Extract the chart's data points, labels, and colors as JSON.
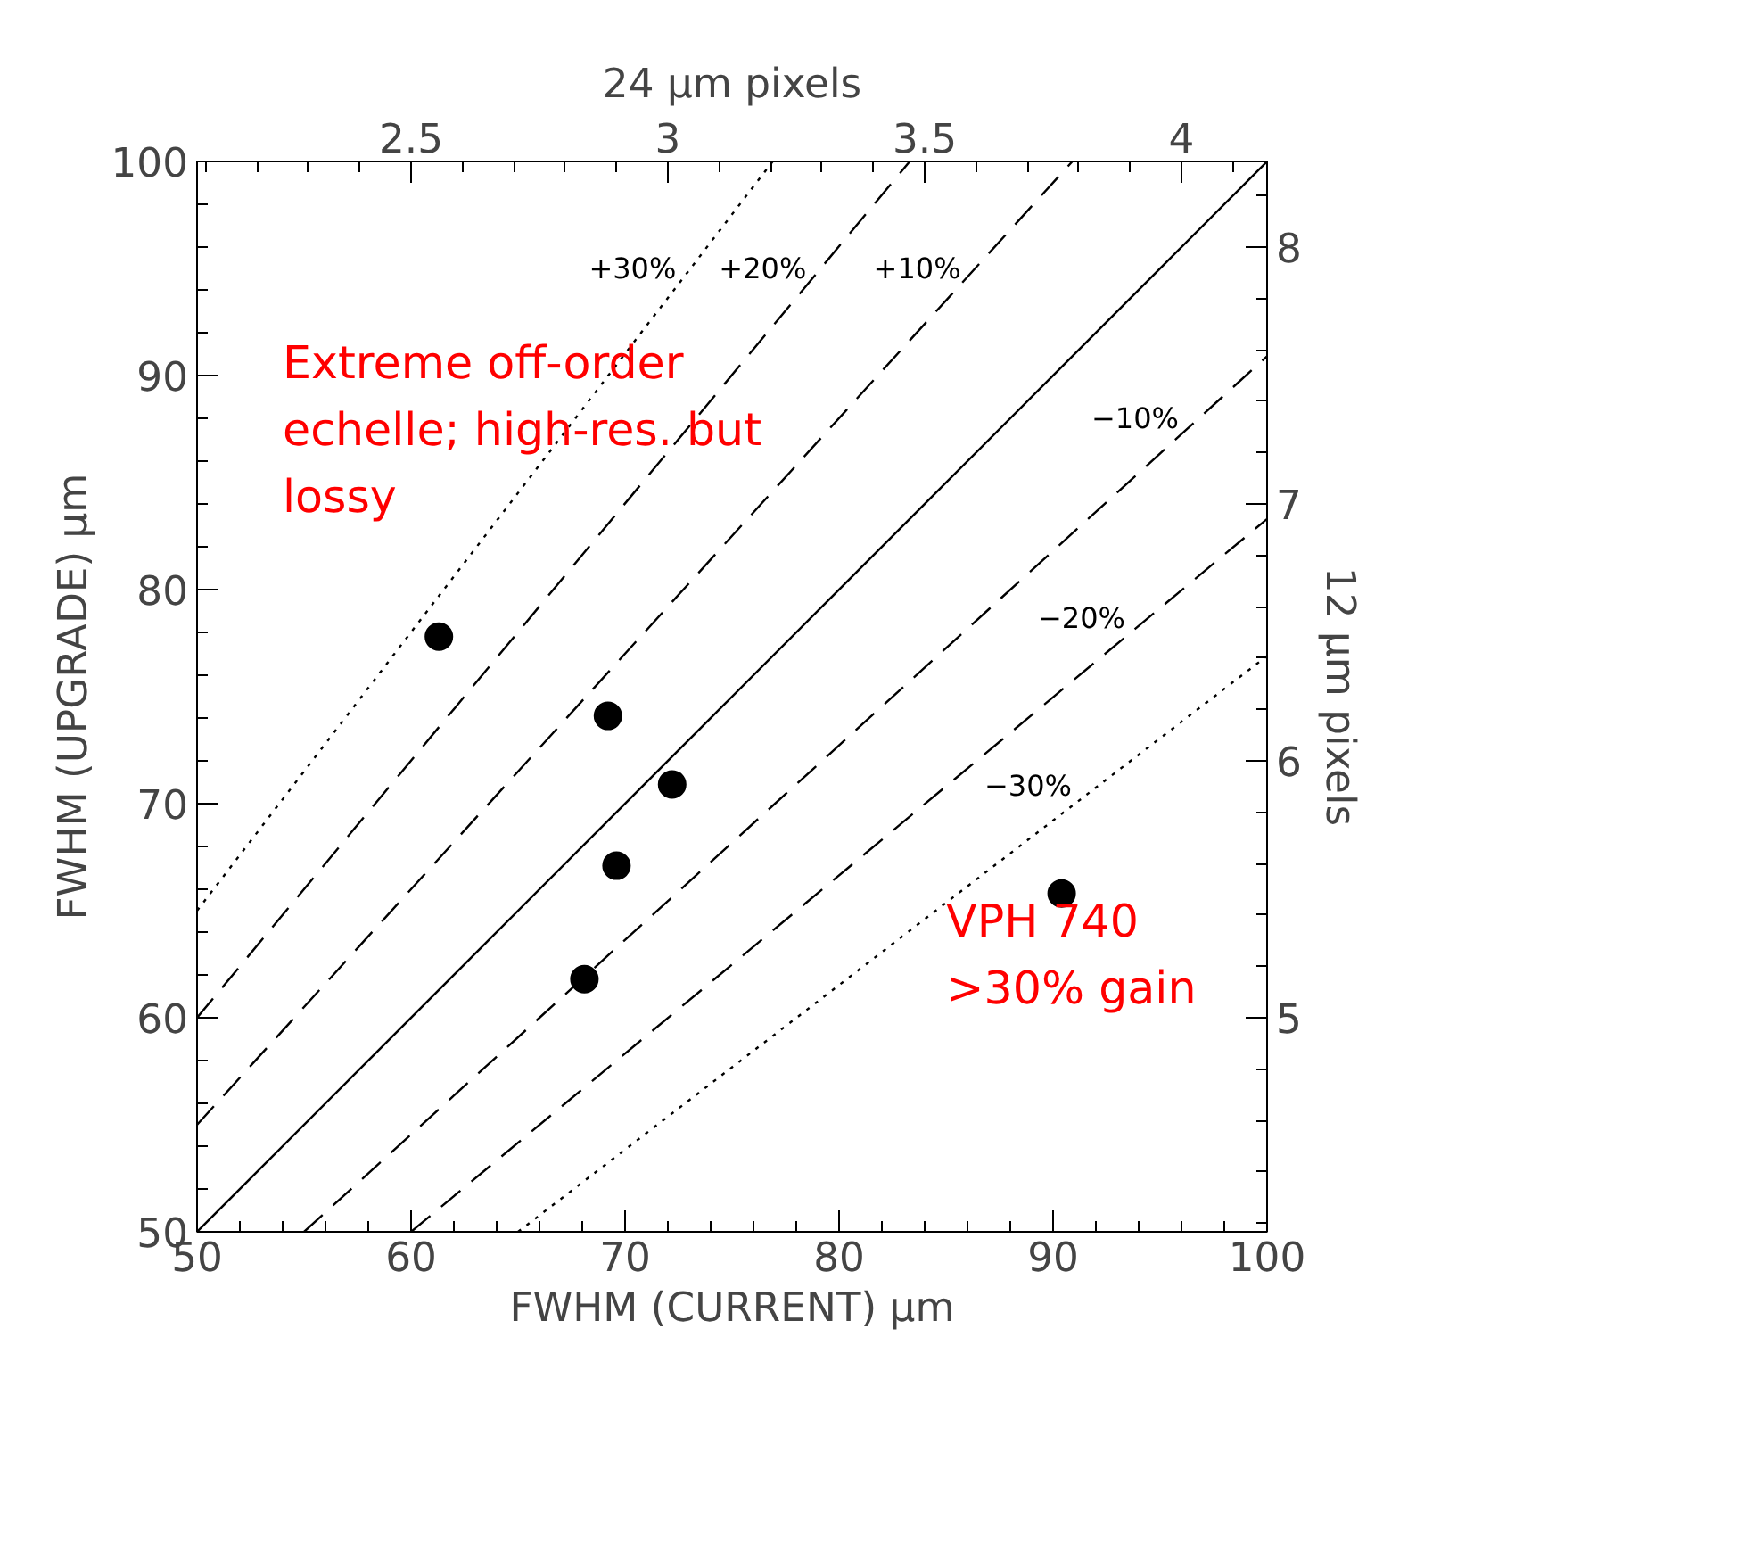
{
  "chart_data": {
    "type": "scatter",
    "xlabel": "FWHM (CURRENT) µm",
    "ylabel": "FWHM (UPGRADE) µm",
    "x2label": "24 µm pixels",
    "y2label": "12 µm pixels",
    "xlim": [
      50,
      100
    ],
    "ylim": [
      50,
      100
    ],
    "xticks": [
      50,
      60,
      70,
      80,
      90,
      100
    ],
    "yticks": [
      50,
      60,
      70,
      80,
      90,
      100
    ],
    "x2lim": [
      2.0833,
      4.1667
    ],
    "x2ticks": [
      2.5,
      3,
      3.5,
      4
    ],
    "y2lim": [
      4.1667,
      8.3333
    ],
    "y2ticks": [
      5,
      6,
      7,
      8
    ],
    "grid": false,
    "series": [
      {
        "color": "#000000",
        "marker": "circle",
        "x": [
          61.3,
          69.2,
          72.2,
          69.6,
          68.1,
          90.4
        ],
        "values": [
          77.8,
          74.1,
          70.9,
          67.1,
          61.8,
          65.8
        ]
      },
      {
        "type": "line",
        "color": "#000000",
        "line_style": "solid",
        "x": [
          50,
          100
        ],
        "values": [
          50,
          100
        ]
      },
      {
        "type": "line",
        "name": "+10%",
        "color": "#000000",
        "line_style": "dashed",
        "x": [
          50,
          90.9
        ],
        "values": [
          55,
          100
        ]
      },
      {
        "type": "line",
        "name": "+20%",
        "color": "#000000",
        "line_style": "dashed",
        "x": [
          50,
          83.3
        ],
        "values": [
          60,
          100
        ]
      },
      {
        "type": "line",
        "name": "+30%",
        "color": "#000000",
        "line_style": "dotted",
        "x": [
          50,
          76.9
        ],
        "values": [
          65,
          100
        ]
      },
      {
        "type": "line",
        "name": "−10%",
        "color": "#000000",
        "line_style": "dashed",
        "x": [
          55,
          100
        ],
        "values": [
          50,
          90.9
        ]
      },
      {
        "type": "line",
        "name": "−20%",
        "color": "#000000",
        "line_style": "dashed",
        "x": [
          60,
          100
        ],
        "values": [
          50,
          83.3
        ]
      },
      {
        "type": "line",
        "name": "−30%",
        "color": "#000000",
        "line_style": "dotted",
        "x": [
          65,
          100
        ],
        "values": [
          50,
          76.9
        ]
      }
    ],
    "annotations": [
      "Extreme off-order\nechelle; high-res. but\nlossy",
      "VPH 740\n>30% gain"
    ]
  }
}
